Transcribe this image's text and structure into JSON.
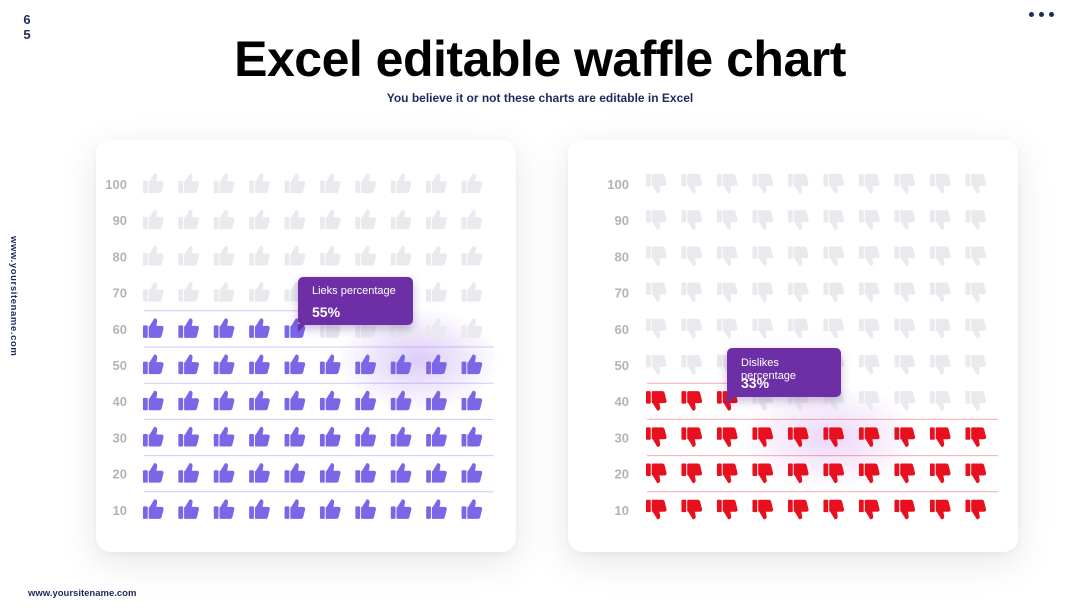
{
  "page_number": [
    "6",
    "5"
  ],
  "title": "Excel editable waffle chart",
  "subtitle": "You believe it or not these charts are editable in Excel",
  "side_url": "www.yoursitename.com",
  "footer_url": "www.yoursitename.com",
  "colors": {
    "likes_filled": "#7b66e8",
    "dislikes_filled": "#e8101e",
    "empty": "#e9e9ee",
    "tooltip": "#6c2fa6",
    "navy": "#1f2a5c"
  },
  "chart_data": [
    {
      "type": "waffle",
      "name": "likes",
      "icon": "thumbs-up-icon",
      "y_ticks": [
        "100",
        "90",
        "80",
        "70",
        "60",
        "50",
        "40",
        "30",
        "20",
        "10"
      ],
      "rows": 10,
      "columns": 10,
      "value": 55,
      "tooltip": {
        "label": "Lieks percentage",
        "value": "55%"
      }
    },
    {
      "type": "waffle",
      "name": "dislikes",
      "icon": "thumbs-down-icon",
      "y_ticks": [
        "100",
        "90",
        "80",
        "70",
        "60",
        "50",
        "40",
        "30",
        "20",
        "10"
      ],
      "rows": 10,
      "columns": 10,
      "value": 33,
      "tooltip": {
        "label": "Dislikes percentage",
        "value": "33%"
      }
    }
  ]
}
